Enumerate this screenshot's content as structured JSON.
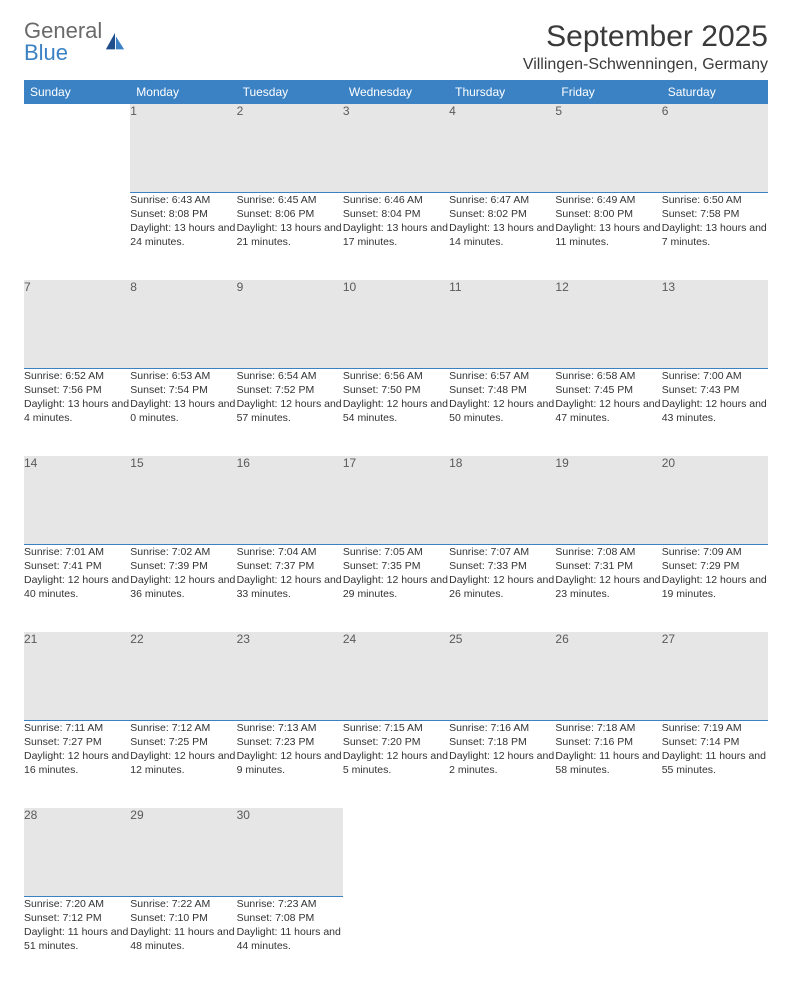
{
  "logo": {
    "line1": "General",
    "line2": "Blue"
  },
  "title": "September 2025",
  "location": "Villingen-Schwenningen, Germany",
  "colors": {
    "header_bg": "#3b82c4",
    "header_text": "#ffffff",
    "daynum_bg": "#e6e6e6",
    "daynum_text": "#5a5a5a",
    "daynum_border": "#3b82c4",
    "body_text": "#333333",
    "page_bg": "#ffffff"
  },
  "weekdays": [
    "Sunday",
    "Monday",
    "Tuesday",
    "Wednesday",
    "Thursday",
    "Friday",
    "Saturday"
  ],
  "weeks": [
    [
      null,
      {
        "n": "1",
        "sr": "Sunrise: 6:43 AM",
        "ss": "Sunset: 8:08 PM",
        "dl": "Daylight: 13 hours and 24 minutes."
      },
      {
        "n": "2",
        "sr": "Sunrise: 6:45 AM",
        "ss": "Sunset: 8:06 PM",
        "dl": "Daylight: 13 hours and 21 minutes."
      },
      {
        "n": "3",
        "sr": "Sunrise: 6:46 AM",
        "ss": "Sunset: 8:04 PM",
        "dl": "Daylight: 13 hours and 17 minutes."
      },
      {
        "n": "4",
        "sr": "Sunrise: 6:47 AM",
        "ss": "Sunset: 8:02 PM",
        "dl": "Daylight: 13 hours and 14 minutes."
      },
      {
        "n": "5",
        "sr": "Sunrise: 6:49 AM",
        "ss": "Sunset: 8:00 PM",
        "dl": "Daylight: 13 hours and 11 minutes."
      },
      {
        "n": "6",
        "sr": "Sunrise: 6:50 AM",
        "ss": "Sunset: 7:58 PM",
        "dl": "Daylight: 13 hours and 7 minutes."
      }
    ],
    [
      {
        "n": "7",
        "sr": "Sunrise: 6:52 AM",
        "ss": "Sunset: 7:56 PM",
        "dl": "Daylight: 13 hours and 4 minutes."
      },
      {
        "n": "8",
        "sr": "Sunrise: 6:53 AM",
        "ss": "Sunset: 7:54 PM",
        "dl": "Daylight: 13 hours and 0 minutes."
      },
      {
        "n": "9",
        "sr": "Sunrise: 6:54 AM",
        "ss": "Sunset: 7:52 PM",
        "dl": "Daylight: 12 hours and 57 minutes."
      },
      {
        "n": "10",
        "sr": "Sunrise: 6:56 AM",
        "ss": "Sunset: 7:50 PM",
        "dl": "Daylight: 12 hours and 54 minutes."
      },
      {
        "n": "11",
        "sr": "Sunrise: 6:57 AM",
        "ss": "Sunset: 7:48 PM",
        "dl": "Daylight: 12 hours and 50 minutes."
      },
      {
        "n": "12",
        "sr": "Sunrise: 6:58 AM",
        "ss": "Sunset: 7:45 PM",
        "dl": "Daylight: 12 hours and 47 minutes."
      },
      {
        "n": "13",
        "sr": "Sunrise: 7:00 AM",
        "ss": "Sunset: 7:43 PM",
        "dl": "Daylight: 12 hours and 43 minutes."
      }
    ],
    [
      {
        "n": "14",
        "sr": "Sunrise: 7:01 AM",
        "ss": "Sunset: 7:41 PM",
        "dl": "Daylight: 12 hours and 40 minutes."
      },
      {
        "n": "15",
        "sr": "Sunrise: 7:02 AM",
        "ss": "Sunset: 7:39 PM",
        "dl": "Daylight: 12 hours and 36 minutes."
      },
      {
        "n": "16",
        "sr": "Sunrise: 7:04 AM",
        "ss": "Sunset: 7:37 PM",
        "dl": "Daylight: 12 hours and 33 minutes."
      },
      {
        "n": "17",
        "sr": "Sunrise: 7:05 AM",
        "ss": "Sunset: 7:35 PM",
        "dl": "Daylight: 12 hours and 29 minutes."
      },
      {
        "n": "18",
        "sr": "Sunrise: 7:07 AM",
        "ss": "Sunset: 7:33 PM",
        "dl": "Daylight: 12 hours and 26 minutes."
      },
      {
        "n": "19",
        "sr": "Sunrise: 7:08 AM",
        "ss": "Sunset: 7:31 PM",
        "dl": "Daylight: 12 hours and 23 minutes."
      },
      {
        "n": "20",
        "sr": "Sunrise: 7:09 AM",
        "ss": "Sunset: 7:29 PM",
        "dl": "Daylight: 12 hours and 19 minutes."
      }
    ],
    [
      {
        "n": "21",
        "sr": "Sunrise: 7:11 AM",
        "ss": "Sunset: 7:27 PM",
        "dl": "Daylight: 12 hours and 16 minutes."
      },
      {
        "n": "22",
        "sr": "Sunrise: 7:12 AM",
        "ss": "Sunset: 7:25 PM",
        "dl": "Daylight: 12 hours and 12 minutes."
      },
      {
        "n": "23",
        "sr": "Sunrise: 7:13 AM",
        "ss": "Sunset: 7:23 PM",
        "dl": "Daylight: 12 hours and 9 minutes."
      },
      {
        "n": "24",
        "sr": "Sunrise: 7:15 AM",
        "ss": "Sunset: 7:20 PM",
        "dl": "Daylight: 12 hours and 5 minutes."
      },
      {
        "n": "25",
        "sr": "Sunrise: 7:16 AM",
        "ss": "Sunset: 7:18 PM",
        "dl": "Daylight: 12 hours and 2 minutes."
      },
      {
        "n": "26",
        "sr": "Sunrise: 7:18 AM",
        "ss": "Sunset: 7:16 PM",
        "dl": "Daylight: 11 hours and 58 minutes."
      },
      {
        "n": "27",
        "sr": "Sunrise: 7:19 AM",
        "ss": "Sunset: 7:14 PM",
        "dl": "Daylight: 11 hours and 55 minutes."
      }
    ],
    [
      {
        "n": "28",
        "sr": "Sunrise: 7:20 AM",
        "ss": "Sunset: 7:12 PM",
        "dl": "Daylight: 11 hours and 51 minutes."
      },
      {
        "n": "29",
        "sr": "Sunrise: 7:22 AM",
        "ss": "Sunset: 7:10 PM",
        "dl": "Daylight: 11 hours and 48 minutes."
      },
      {
        "n": "30",
        "sr": "Sunrise: 7:23 AM",
        "ss": "Sunset: 7:08 PM",
        "dl": "Daylight: 11 hours and 44 minutes."
      },
      null,
      null,
      null,
      null
    ]
  ]
}
